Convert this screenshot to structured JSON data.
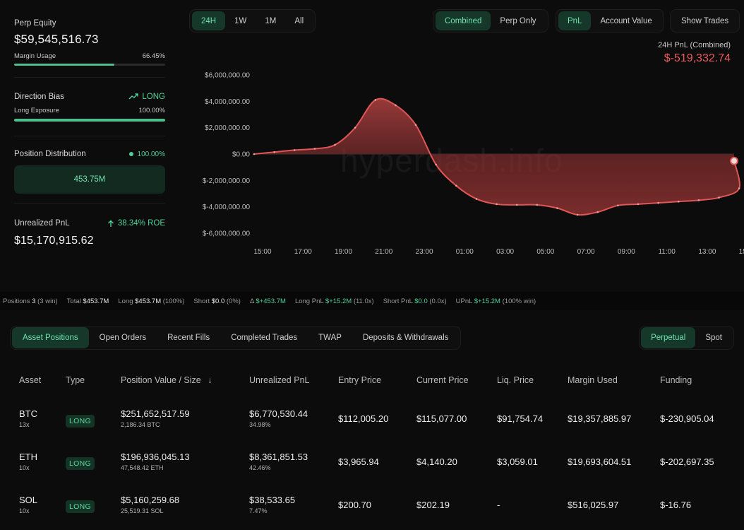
{
  "left": {
    "perp_equity_label": "Perp Equity",
    "perp_equity_value": "$59,545,516.73",
    "margin_usage_label": "Margin Usage",
    "margin_usage_value": "66.45%",
    "margin_usage_fraction": 0.6645,
    "direction_bias_label": "Direction Bias",
    "direction_bias_value": "LONG",
    "long_exposure_label": "Long Exposure",
    "long_exposure_value": "100.00%",
    "long_exposure_fraction": 1.0,
    "position_distribution_label": "Position Distribution",
    "position_distribution_value": "100.00%",
    "distribution_box_value": "453.75M",
    "unrealized_pnl_label": "Unrealized PnL",
    "roe_value": "38.34% ROE",
    "unrealized_pnl_value": "$15,170,915.62"
  },
  "range_tabs": [
    "24H",
    "1W",
    "1M",
    "All"
  ],
  "range_active": "24H",
  "mode_tabs": [
    "Combined",
    "Perp Only"
  ],
  "mode_active": "Combined",
  "metric_tabs": [
    "PnL",
    "Account Value"
  ],
  "metric_active": "PnL",
  "show_trades_label": "Show Trades",
  "pnl_header": {
    "caption": "24H PnL (Combined)",
    "value": "$-519,332.74"
  },
  "watermark": "hyperdash.info",
  "colors": {
    "accent_green": "#4fd19a",
    "negative_red": "#ec5a5a",
    "line_red": "#e05555",
    "background": "#0c0c0c"
  },
  "chart_data": {
    "type": "area",
    "x": [
      "15:00",
      "16:00",
      "17:00",
      "18:00",
      "19:00",
      "20:00",
      "21:00",
      "22:00",
      "23:00",
      "00:00",
      "01:00",
      "02:00",
      "03:00",
      "04:00",
      "05:00",
      "06:00",
      "07:00",
      "08:00",
      "09:00",
      "10:00",
      "11:00",
      "12:00",
      "13:00",
      "14:00",
      "15:00",
      "15:45"
    ],
    "values": [
      0,
      150000,
      300000,
      400000,
      700000,
      2000000,
      4100000,
      3700000,
      2200000,
      -800000,
      -2400000,
      -3400000,
      -3800000,
      -3850000,
      -3850000,
      -4100000,
      -4600000,
      -4400000,
      -3900000,
      -3800000,
      -3700000,
      -3600000,
      -3500000,
      -3300000,
      -2600000,
      -519332.74
    ],
    "ylim": [
      -6000000,
      6000000
    ],
    "yticks": [
      "$6,000,000.00",
      "$4,000,000.00",
      "$2,000,000.00",
      "$0.00",
      "$-2,000,000.00",
      "$-4,000,000.00",
      "$-6,000,000.00"
    ],
    "ytick_values": [
      6000000,
      4000000,
      2000000,
      0,
      -2000000,
      -4000000,
      -6000000
    ],
    "xtick_labels": [
      "15:00",
      "17:00",
      "19:00",
      "21:00",
      "23:00",
      "01:00",
      "03:00",
      "05:00",
      "07:00",
      "09:00",
      "11:00",
      "13:00",
      "15:00"
    ],
    "grid": false,
    "legend": "none"
  },
  "summary": {
    "positions_label": "Positions",
    "positions_value": "3",
    "positions_win": "(3 win)",
    "total_label": "Total",
    "total_value": "$453.7M",
    "long_label": "Long",
    "long_value": "$453.7M",
    "long_pct": "(100%)",
    "short_label": "Short",
    "short_value": "$0.0",
    "short_pct": "(0%)",
    "delta_label": "Δ",
    "delta_value": "$+453.7M",
    "long_pnl_label": "Long PnL",
    "long_pnl_value": "$+15.2M",
    "long_pnl_ratio": "(11.0x)",
    "short_pnl_label": "Short PnL",
    "short_pnl_value": "$0.0",
    "short_pnl_ratio": "(0.0x)",
    "upnl_label": "UPnL",
    "upnl_value": "$+15.2M",
    "upnl_pct": "(100% win)"
  },
  "position_tabs": [
    "Asset Positions",
    "Open Orders",
    "Recent Fills",
    "Completed Trades",
    "TWAP",
    "Deposits & Withdrawals"
  ],
  "position_tab_active": "Asset Positions",
  "market_tabs": [
    "Perpetual",
    "Spot"
  ],
  "market_tab_active": "Perpetual",
  "table": {
    "headers": {
      "asset": "Asset",
      "type": "Type",
      "position": "Position Value / Size",
      "sort_arrow": "↓",
      "upnl": "Unrealized PnL",
      "entry": "Entry Price",
      "current": "Current Price",
      "liq": "Liq. Price",
      "margin": "Margin Used",
      "funding": "Funding"
    },
    "rows": [
      {
        "asset": "BTC",
        "leverage": "13x",
        "type": "LONG",
        "position_value": "$251,652,517.59",
        "size": "2,186.34 BTC",
        "upnl": "$6,770,530.44",
        "upnl_pct": "34.98%",
        "entry": "$112,005.20",
        "current": "$115,077.00",
        "liq": "$91,754.74",
        "margin": "$19,357,885.97",
        "funding": "$-230,905.04"
      },
      {
        "asset": "ETH",
        "leverage": "10x",
        "type": "LONG",
        "position_value": "$196,936,045.13",
        "size": "47,548.42 ETH",
        "upnl": "$8,361,851.53",
        "upnl_pct": "42.46%",
        "entry": "$3,965.94",
        "current": "$4,140.20",
        "liq": "$3,059.01",
        "margin": "$19,693,604.51",
        "funding": "$-202,697.35"
      },
      {
        "asset": "SOL",
        "leverage": "10x",
        "type": "LONG",
        "position_value": "$5,160,259.68",
        "size": "25,519.31 SOL",
        "upnl": "$38,533.65",
        "upnl_pct": "7.47%",
        "entry": "$200.70",
        "current": "$202.19",
        "liq": "-",
        "margin": "$516,025.97",
        "funding": "$-16.76"
      }
    ]
  }
}
